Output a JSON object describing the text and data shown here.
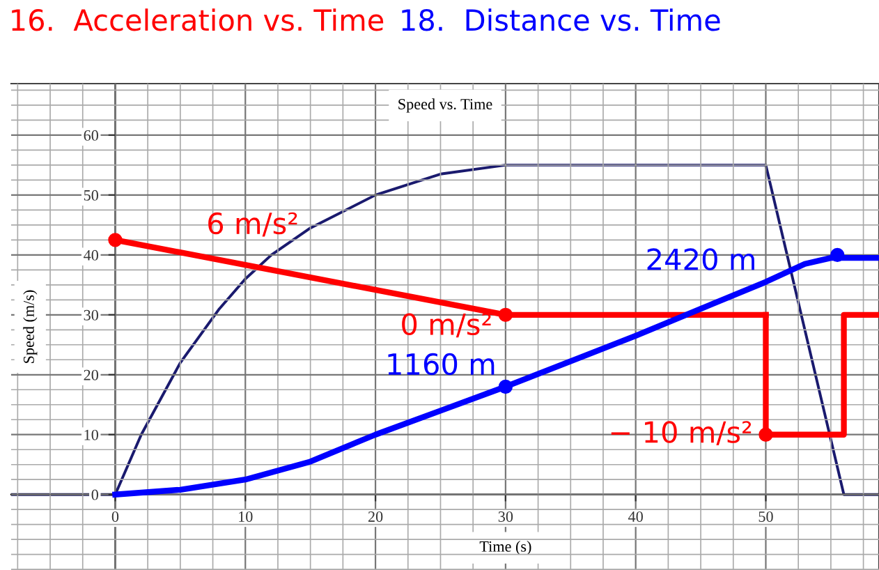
{
  "chart_data": {
    "type": "line",
    "title": "16.  Acceleration vs. Time",
    "subtitle": "18.  Distance vs. Time",
    "xlabel": "Time (s)",
    "ylabel": "Speed (m/s)",
    "annotations": [
      "Speed vs. Time"
    ],
    "series": [
      {
        "color": "#1a1a6e",
        "x": [
          -8,
          0,
          2,
          5,
          8,
          10,
          12,
          15,
          20,
          25,
          30,
          50,
          56,
          58.7
        ],
        "values": [
          0,
          0,
          10,
          22,
          31,
          36,
          40,
          44.5,
          50,
          53.5,
          55,
          55,
          0,
          0
        ]
      },
      {
        "name": "6 m/s²",
        "color": "#ff0000",
        "x": [
          0,
          30
        ],
        "values": [
          42.5,
          30
        ]
      },
      {
        "name": "0 m/s²",
        "color": "#ff0000",
        "x": [
          30,
          50
        ],
        "values": [
          30,
          30
        ]
      },
      {
        "name": "− 10 m/s²",
        "color": "#ff0000",
        "x": [
          50,
          50,
          56,
          56,
          58.7
        ],
        "values": [
          30,
          10,
          10,
          30,
          30
        ]
      },
      {
        "name": "1160 m",
        "color": "#0000ff",
        "x": [
          0,
          5,
          10,
          15,
          20,
          25,
          30
        ],
        "values": [
          0,
          0.8,
          2.5,
          5.5,
          10,
          14,
          18
        ]
      },
      {
        "name": "2420 m",
        "color": "#0000ff",
        "x": [
          30,
          40,
          45,
          50,
          53,
          55,
          58.7
        ],
        "values": [
          18,
          26.5,
          31,
          35.5,
          38.5,
          39.5,
          39.5
        ]
      },
      {
        "type": "scatter",
        "color": "#ff0000",
        "x": [
          0,
          30,
          50
        ],
        "values": [
          42.5,
          30,
          10
        ]
      },
      {
        "type": "scatter",
        "color": "#0000ff",
        "x": [
          30,
          55.5
        ],
        "values": [
          18,
          40
        ]
      }
    ],
    "xlim": [
      -8,
      58.7
    ],
    "ylim": [
      -12.6,
      68.6
    ],
    "xticks": [
      0,
      10,
      20,
      30,
      40,
      50
    ],
    "yticks": [
      0,
      10,
      20,
      30,
      40,
      50,
      60
    ],
    "grid": true
  }
}
